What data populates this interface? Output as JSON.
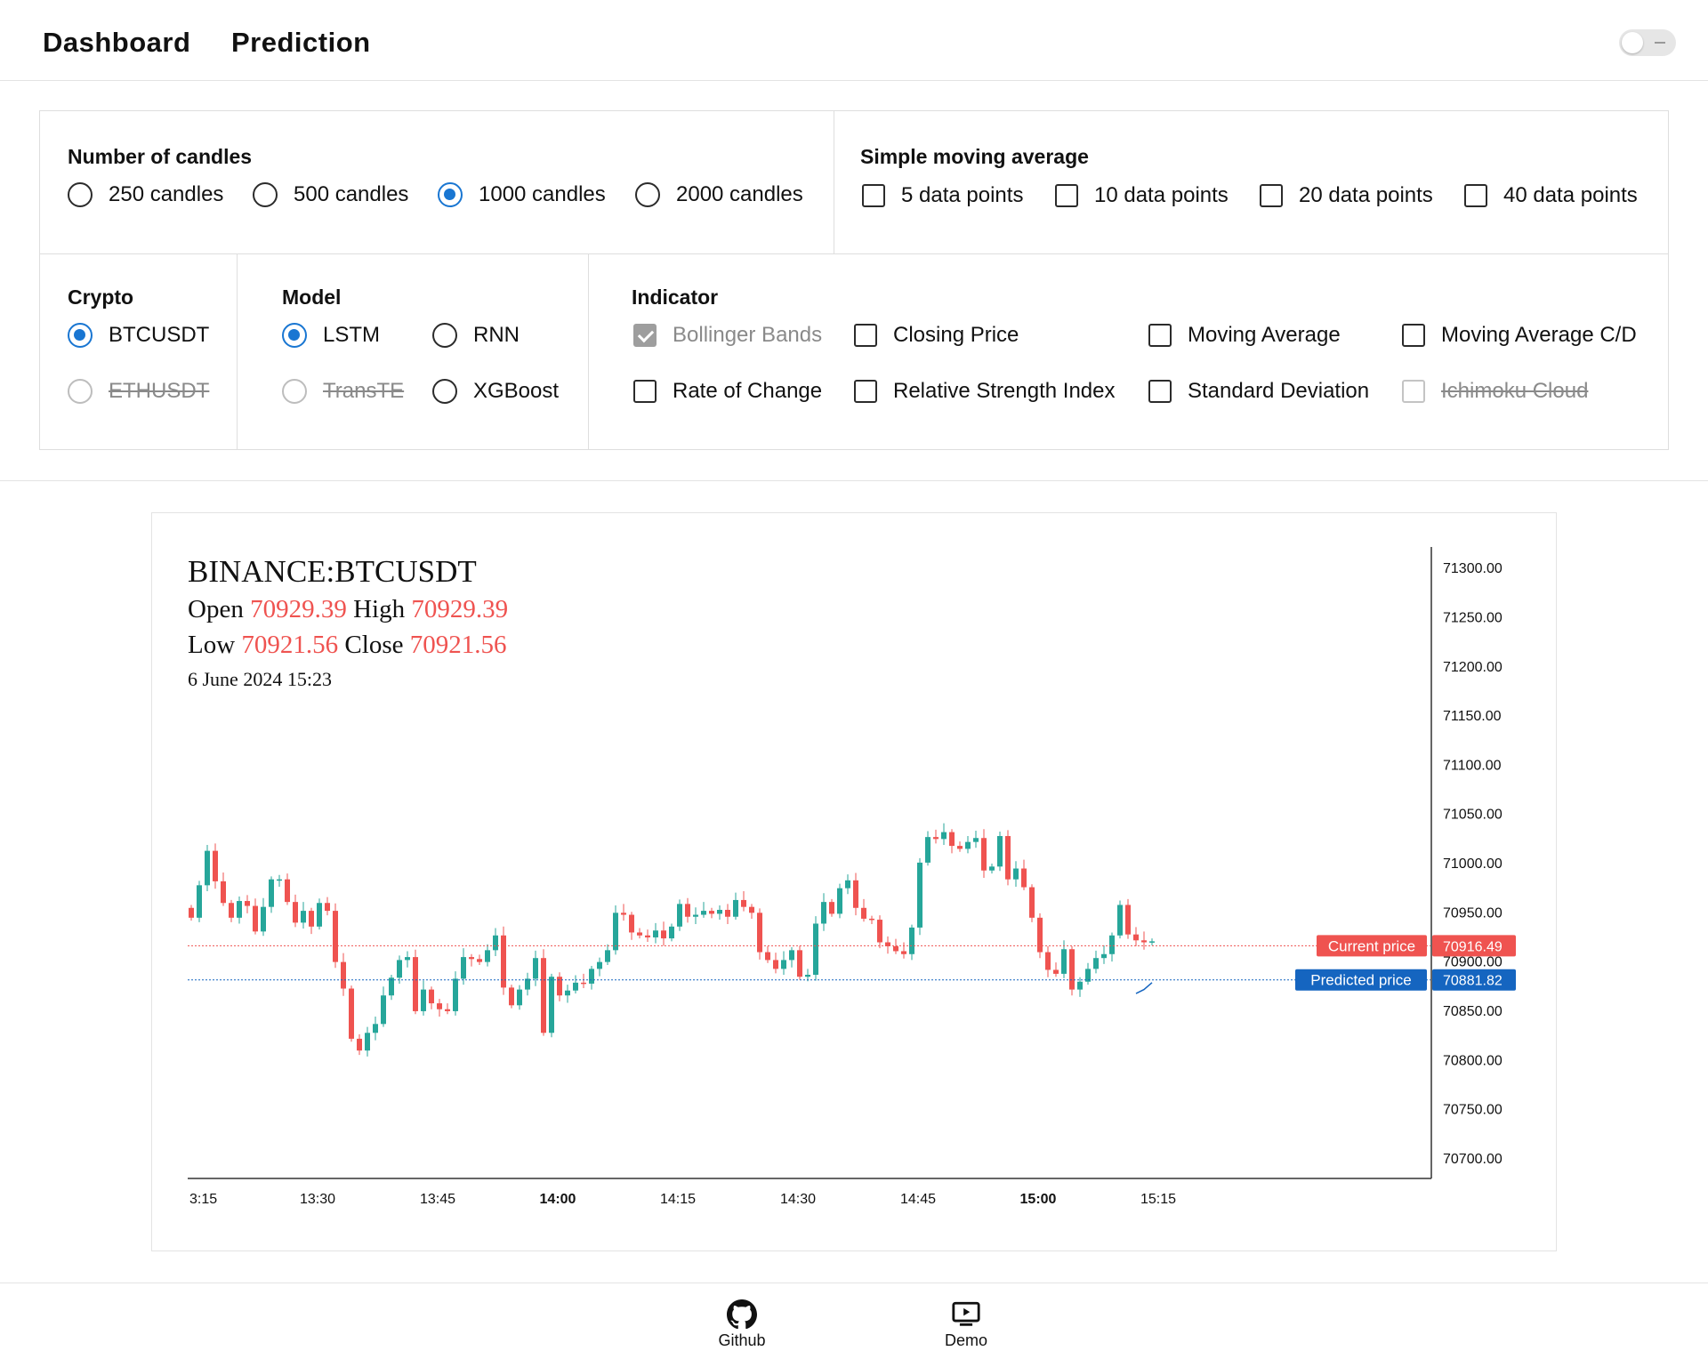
{
  "nav": {
    "dashboard": "Dashboard",
    "prediction": "Prediction"
  },
  "theme_toggle": {
    "on": false
  },
  "candles": {
    "title": "Number of candles",
    "options": [
      "250 candles",
      "500 candles",
      "1000 candles",
      "2000 candles"
    ],
    "selected": "1000 candles"
  },
  "sma": {
    "title": "Simple moving average",
    "options": [
      "5 data points",
      "10 data points",
      "20 data points",
      "40 data points"
    ]
  },
  "crypto": {
    "title": "Crypto",
    "options": [
      "BTCUSDT",
      "ETHUSDT"
    ],
    "selected": "BTCUSDT",
    "disabled": [
      "ETHUSDT"
    ]
  },
  "model": {
    "title": "Model",
    "options": [
      "LSTM",
      "RNN",
      "TransTE",
      "XGBoost"
    ],
    "selected": "LSTM",
    "disabled": [
      "TransTE"
    ]
  },
  "indicator": {
    "title": "Indicator",
    "options": [
      "Bollinger Bands",
      "Closing Price",
      "Moving Average",
      "Moving Average C/D",
      "Rate of Change",
      "Relative Strength Index",
      "Standard Deviation",
      "Ichimoku Cloud"
    ],
    "checked_disabled": [
      "Bollinger Bands"
    ],
    "disabled": [
      "Ichimoku Cloud"
    ]
  },
  "chart_legend": {
    "symbol": "BINANCE:BTCUSDT",
    "open_label": "Open",
    "open": "70929.39",
    "high_label": "High",
    "high": "70929.39",
    "low_label": "Low",
    "low": "70921.56",
    "close_label": "Close",
    "close": "70921.56",
    "date": "6 June 2024 15:23"
  },
  "chart_data": {
    "type": "candlestick",
    "symbol": "BINANCE:BTCUSDT",
    "ylim": [
      70680,
      71320
    ],
    "y_ticks": [
      "71300.00",
      "71250.00",
      "71200.00",
      "71150.00",
      "71100.00",
      "71050.00",
      "71000.00",
      "70950.00",
      "70900.00",
      "70850.00",
      "70800.00",
      "70750.00",
      "70700.00"
    ],
    "x_ticks": [
      "3:15",
      "13:30",
      "13:45",
      "14:00",
      "14:15",
      "14:30",
      "14:45",
      "15:00",
      "15:15"
    ],
    "x_ticks_bold": [
      "14:00",
      "15:00"
    ],
    "interval": "1m",
    "first_candle_time": "13:16",
    "last_candle_time": "15:23",
    "up_color": "#26a69a",
    "down_color": "#ef5350",
    "closes": [
      70945,
      70978,
      71013,
      70982,
      70960,
      70945,
      70962,
      70957,
      70931,
      70956,
      70984,
      70984,
      70961,
      70940,
      70952,
      70936,
      70960,
      70952,
      70900,
      70873,
      70822,
      70810,
      70828,
      70837,
      70866,
      70884,
      70902,
      70905,
      70850,
      70872,
      70858,
      70852,
      70850,
      70883,
      70905,
      70903,
      70900,
      70912,
      70927,
      70874,
      70856,
      70872,
      70883,
      70904,
      70828,
      70885,
      70866,
      70871,
      70879,
      70878,
      70893,
      70900,
      70912,
      70950,
      70948,
      70930,
      70927,
      70925,
      70932,
      70924,
      70936,
      70959,
      70946,
      70948,
      70952,
      70949,
      70953,
      70946,
      70963,
      70956,
      70950,
      70910,
      70902,
      70893,
      70902,
      70912,
      70885,
      70887,
      70939,
      70961,
      70949,
      70975,
      70983,
      70955,
      70944,
      70943,
      70920,
      70916,
      70911,
      70908,
      70935,
      71001,
      71027,
      71025,
      71032,
      71018,
      71015,
      71022,
      71026,
      70993,
      70997,
      71028,
      70984,
      70995,
      70976,
      70945,
      70910,
      70892,
      70888,
      70913,
      70872,
      70880,
      70893,
      70904,
      70908,
      70927,
      70958,
      70928,
      70922,
      70920,
      70921
    ],
    "current_price": {
      "label": "Current price",
      "value": "70916.49",
      "color": "#ef5350"
    },
    "predicted_price": {
      "label": "Predicted price",
      "value": "70881.82",
      "color": "#1565c0"
    },
    "prediction_line": [
      70868,
      70872,
      70879
    ]
  },
  "footer": {
    "github": "Github",
    "demo": "Demo"
  }
}
